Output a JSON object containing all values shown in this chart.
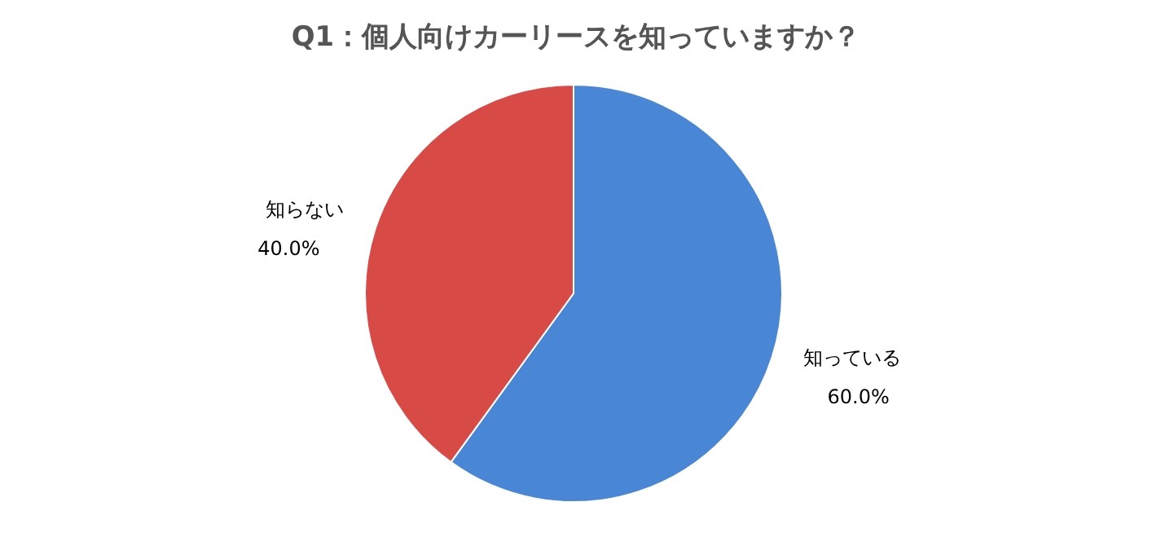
{
  "chart_data": {
    "type": "pie",
    "title": "Q1：個人向けカーリースを知っていますか？",
    "categories": [
      "知っている",
      "知らない"
    ],
    "values": [
      60,
      40
    ],
    "value_labels": [
      "60.0%",
      "40.0%"
    ],
    "colors": [
      "#4a86d6",
      "#d84a46"
    ],
    "legend": false
  }
}
